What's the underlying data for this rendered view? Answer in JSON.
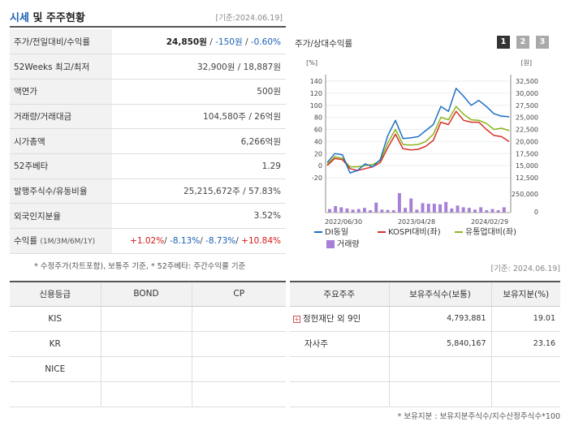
{
  "header": {
    "title_accent": "시세",
    "title_rest": " 및 주주현황",
    "date": "[기준:2024.06.19]"
  },
  "info": {
    "price_label": "주가/전일대비/수익률",
    "price": "24,850원",
    "change": "-150원",
    "change_pct": "-0.60%",
    "week52_label": "52Weeks 최고/최저",
    "week52": "32,900원 / 18,887원",
    "par_label": "액면가",
    "par": "500원",
    "volume_label": "거래량/거래대금",
    "volume": "104,580주 / 26억원",
    "mcap_label": "시가총액",
    "mcap": "6,266억원",
    "beta_label": "52주베타",
    "beta": "1.29",
    "shares_label": "발행주식수/유동비율",
    "shares": "25,215,672주 / 57.83%",
    "foreign_label": "외국인지분율",
    "foreign": "3.52%",
    "return_label": "수익률",
    "return_periods": "(1M/3M/6M/1Y)",
    "ret_1m": "+1.02%",
    "ret_3m": "-8.13%",
    "ret_6m": "-8.73%",
    "ret_1y": "+10.84%"
  },
  "note1": "* 수정주가(차트포함), 보통주 기준, * 52주베타: 주간수익률 기준",
  "chart_panel": {
    "title": "주가/상대수익률",
    "pages": [
      "1",
      "2",
      "3"
    ]
  },
  "chart_data": {
    "type": "line",
    "x_labels": [
      "2022/06/30",
      "2023/04/28",
      "2024/02/29"
    ],
    "left_unit": "[%]",
    "right_unit": "[원]",
    "left_ticks": [
      140,
      120,
      100,
      80,
      60,
      40,
      20,
      0,
      -20
    ],
    "right_ticks": [
      "32,500",
      "30,000",
      "27,500",
      "25,000",
      "22,500",
      "20,000",
      "17,500",
      "15,000",
      "12,500"
    ],
    "volume_ticks": [
      "250,000",
      "0"
    ],
    "ylim_pct": [
      -20,
      140
    ],
    "series": [
      {
        "name": "DI동일",
        "color": "#1f6fc5",
        "values": [
          5,
          20,
          18,
          -12,
          -8,
          3,
          -2,
          10,
          50,
          75,
          45,
          46,
          48,
          58,
          68,
          98,
          90,
          128,
          115,
          100,
          108,
          98,
          86,
          82,
          81
        ]
      },
      {
        "name": "KOSPI대비(좌)",
        "color": "#d73027",
        "values": [
          0,
          12,
          10,
          -5,
          -8,
          -5,
          -2,
          5,
          30,
          52,
          28,
          26,
          27,
          32,
          42,
          72,
          68,
          90,
          75,
          72,
          72,
          60,
          50,
          48,
          40
        ]
      },
      {
        "name": "유통업대비(좌)",
        "color": "#8ab61c",
        "values": [
          2,
          15,
          12,
          -2,
          -2,
          0,
          2,
          8,
          38,
          60,
          35,
          34,
          35,
          40,
          52,
          80,
          76,
          98,
          85,
          76,
          75,
          70,
          60,
          62,
          58
        ]
      }
    ],
    "volume": {
      "name": "거래량",
      "color": "#a77fd6",
      "values": [
        60,
        110,
        90,
        70,
        50,
        60,
        80,
        40,
        170,
        50,
        45,
        40,
        330,
        80,
        240,
        50,
        160,
        150,
        150,
        140,
        180,
        70,
        120,
        90,
        80,
        50,
        90,
        40,
        60,
        40,
        90
      ]
    }
  },
  "date2": "[기준: 2024.06.19]",
  "credit": {
    "headers": [
      "신용등급",
      "BOND",
      "CP"
    ],
    "rows": [
      "KIS",
      "KR",
      "NICE",
      ""
    ]
  },
  "holders": {
    "headers": [
      "주요주주",
      "보유주식수(보통)",
      "보유지분(%)"
    ],
    "rows": [
      {
        "name": "정헌재단 외 9인",
        "shares": "4,793,881",
        "pct": "19.01"
      },
      {
        "name": "자사주",
        "shares": "5,840,167",
        "pct": "23.16"
      },
      {
        "name": "",
        "shares": "",
        "pct": ""
      },
      {
        "name": "",
        "shares": "",
        "pct": ""
      }
    ]
  },
  "note2": "* 보유지분 : 보유지분주식수/지수산정주식수*100"
}
